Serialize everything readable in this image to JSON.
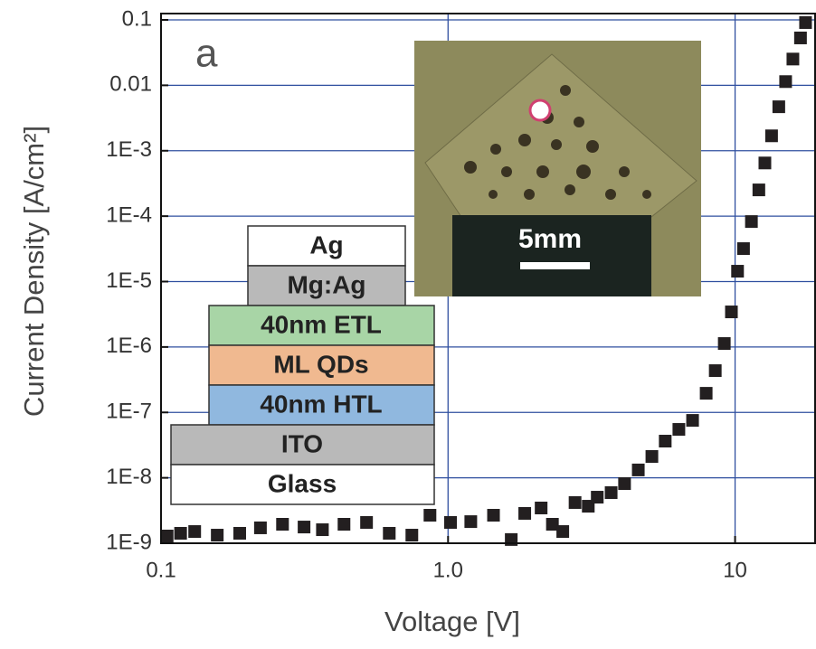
{
  "chart_data": {
    "type": "scatter",
    "xlabel": "Voltage [V]",
    "ylabel": "Current Density [A/cm²]",
    "xscale": "log",
    "yscale": "log",
    "grid": true,
    "color": "#231f20",
    "xlim": [
      0.1,
      19
    ],
    "ylim": [
      1e-09,
      0.125
    ],
    "xticks": [
      0.1,
      {
        "value": 1,
        "label": "1.0"
      },
      10
    ],
    "yticks": [
      0.1,
      0.01,
      {
        "value": 0.001,
        "label": "1E-3"
      },
      {
        "value": 0.0001,
        "label": "1E-4"
      },
      {
        "value": 1e-05,
        "label": "1E-5"
      },
      {
        "value": 1e-06,
        "label": "1E-6"
      },
      {
        "value": 1e-07,
        "label": "1E-7"
      },
      {
        "value": 1e-08,
        "label": "1E-8"
      },
      {
        "value": 1e-09,
        "label": "1E-9"
      }
    ],
    "x": [
      0.105,
      0.117,
      0.131,
      0.157,
      0.188,
      0.222,
      0.265,
      0.315,
      0.365,
      0.434,
      0.52,
      0.624,
      0.748,
      0.865,
      1.02,
      1.2,
      1.44,
      1.66,
      1.85,
      2.11,
      2.31,
      2.51,
      2.77,
      3.08,
      3.31,
      3.7,
      4.12,
      4.6,
      5.13,
      5.71,
      6.37,
      7.11,
      7.93,
      8.53,
      9.17,
      9.71,
      10.2,
      10.7,
      11.4,
      12.1,
      12.7,
      13.4,
      14.2,
      15.0,
      15.9,
      16.9,
      17.6
    ],
    "values": [
      1.29e-09,
      1.42e-09,
      1.51e-09,
      1.33e-09,
      1.42e-09,
      1.72e-09,
      1.95e-09,
      1.77e-09,
      1.61e-09,
      1.95e-09,
      2.08e-09,
      1.42e-09,
      1.33e-09,
      2.68e-09,
      2.08e-09,
      2.14e-09,
      2.68e-09,
      1.14e-09,
      2.86e-09,
      3.46e-09,
      1.95e-09,
      1.51e-09,
      4.19e-09,
      3.68e-09,
      5.06e-09,
      5.94e-09,
      8.16e-09,
      1.32e-08,
      2.12e-08,
      3.64e-08,
      5.5e-08,
      7.55e-08,
      1.96e-07,
      4.35e-07,
      1.13e-06,
      3.44e-06,
      1.44e-05,
      3.19e-05,
      8.27e-05,
      0.000252,
      0.00065,
      0.00169,
      0.0047,
      0.0114,
      0.0252,
      0.053,
      0.091
    ],
    "annotations": {
      "panel": "a",
      "scale_bar": "5mm",
      "layers": [
        "Ag",
        "Mg:Ag",
        "40nm ETL",
        "ML QDs",
        "40nm HTL",
        "ITO",
        "Glass"
      ]
    }
  }
}
